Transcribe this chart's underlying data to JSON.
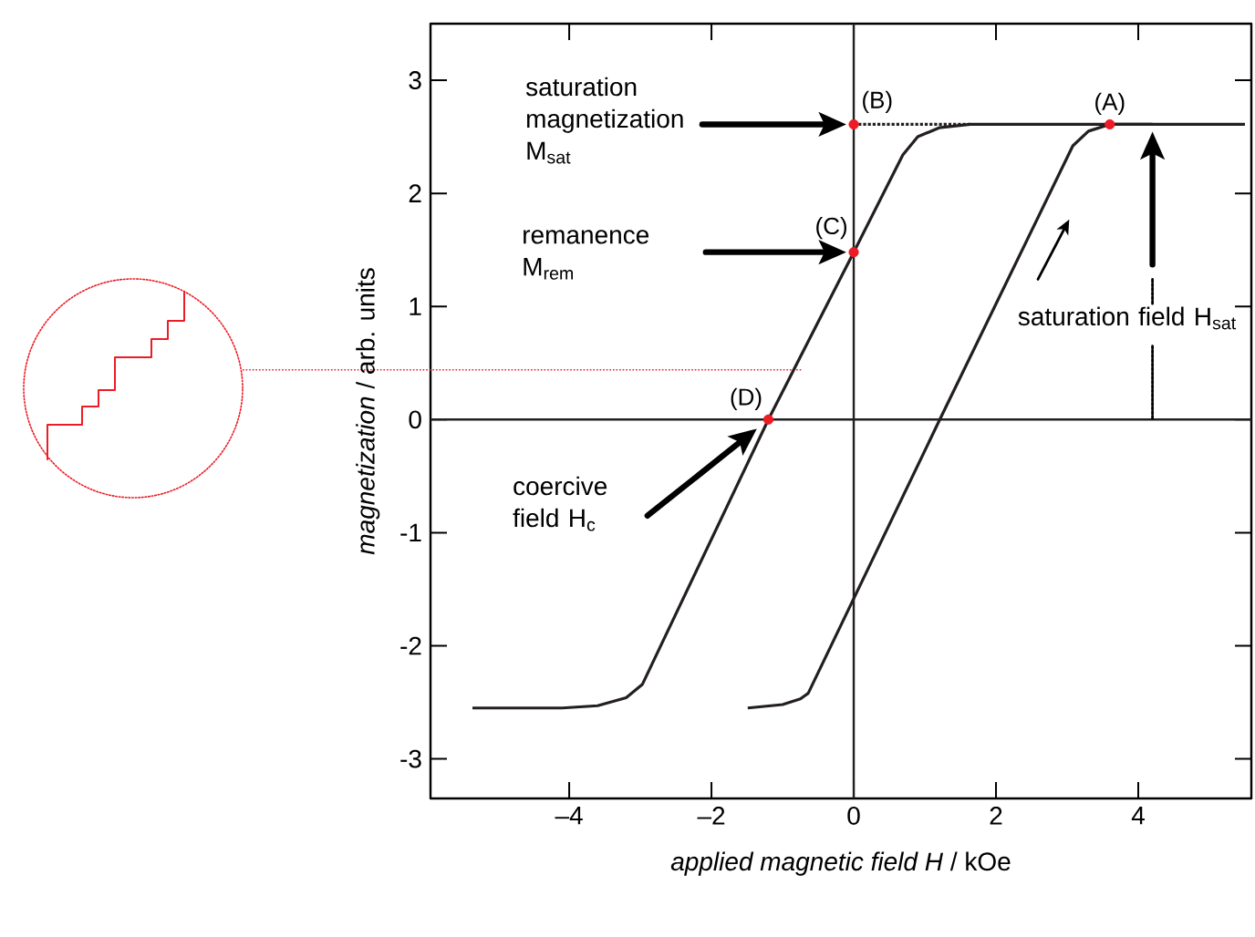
{
  "chart_data": {
    "type": "line",
    "xlabel": "*applied magnetic field H*  /  kOe",
    "ylabel": "*magnetization*  / arb. units",
    "xlim": [
      -5.95,
      5.59
    ],
    "ylim": [
      -3.35,
      3.5
    ],
    "xticks": [
      {
        "value": -4,
        "label": "–4"
      },
      {
        "value": -2,
        "label": "–2"
      },
      0,
      2,
      4
    ],
    "yticks": [
      -3,
      -2,
      -1,
      0,
      1,
      2,
      3
    ],
    "grid": false,
    "series": [
      {
        "color": "#231f20",
        "marker": "none",
        "line_style": "solid",
        "x": [
          5.5,
          4.2,
          1.64,
          1.2,
          0.9,
          0.69,
          0,
          -1.2,
          -2.97,
          -3.2,
          -3.6,
          -4.1,
          -5.36
        ],
        "values": [
          2.61,
          2.61,
          2.61,
          2.58,
          2.5,
          2.34,
          1.48,
          0,
          -2.34,
          -2.46,
          -2.53,
          -2.55,
          -2.55
        ]
      },
      {
        "color": "#231f20",
        "marker": "none",
        "line_style": "solid",
        "x": [
          -1.49,
          -1.0,
          -0.75,
          -0.64,
          1.21,
          3.08,
          3.3,
          3.6,
          4.2
        ],
        "values": [
          -2.55,
          -2.52,
          -2.47,
          -2.42,
          0,
          2.42,
          2.55,
          2.61,
          2.61
        ]
      },
      {
        "color": "#231f20",
        "marker": "none",
        "line_style": "dotted",
        "x": [
          0,
          1.64
        ],
        "values": [
          2.61,
          2.61
        ]
      },
      {
        "type": "scatter",
        "color": "#ed1c24",
        "marker": "circle",
        "x": [
          3.6,
          0,
          0,
          -1.2
        ],
        "values": [
          2.61,
          2.61,
          1.48,
          0
        ]
      }
    ],
    "ref_lines": [
      {
        "axis": "x",
        "value": 0,
        "color": "#231f20"
      },
      {
        "axis": "y",
        "value": 0,
        "color": "#231f20"
      },
      {
        "axis": "y",
        "value": 0.44,
        "color": "#ed1c24",
        "line_style": "dotted"
      }
    ],
    "annotations": [
      {
        "text": "(A)",
        "x": 3.6,
        "y": 2.61
      },
      {
        "text": "(B)",
        "x": 0,
        "y": 2.61
      },
      {
        "text": "(C)",
        "x": 0,
        "y": 1.48
      },
      {
        "text": "(D)",
        "x": -1.2,
        "y": 0
      },
      "saturation magnetization M$_{sat}$",
      "remanence M$_{rem}$",
      "coercive field H$_{c}$",
      {
        "text": "saturation field H$_{sat}$",
        "x": 4.2,
        "y": 0
      }
    ]
  }
}
